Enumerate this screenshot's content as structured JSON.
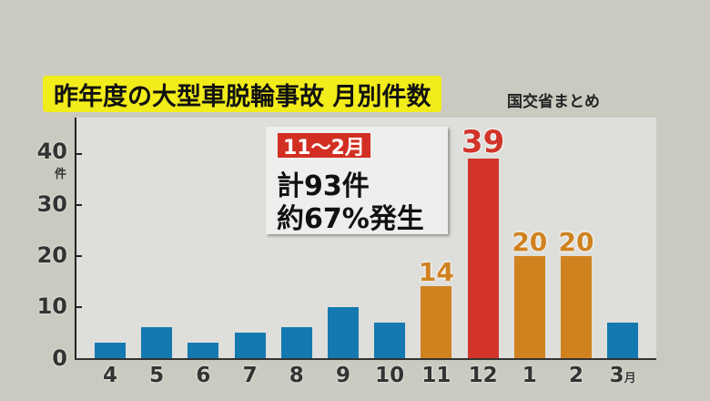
{
  "header": {
    "title": "昨年度の大型車脱輪事故 月別件数",
    "source": "国交省まとめ"
  },
  "callout": {
    "tag": "11〜2月",
    "line1": "計93件",
    "line2": "約67%発生"
  },
  "axis": {
    "y_ticks": [
      "40",
      "30",
      "20",
      "10",
      "0"
    ],
    "y_unit": "件",
    "x_unit": "月"
  },
  "colors": {
    "normal": "#1479b0",
    "highlight": "#d0821f",
    "peak": "#d2342a"
  },
  "chart_data": {
    "type": "bar",
    "title": "昨年度の大型車脱輪事故 月別件数",
    "subtitle": "国交省まとめ",
    "xlabel": "月",
    "ylabel": "件",
    "categories": [
      "4",
      "5",
      "6",
      "7",
      "8",
      "9",
      "10",
      "11",
      "12",
      "1",
      "2",
      "3"
    ],
    "values": [
      3,
      6,
      3,
      5,
      6,
      10,
      7,
      14,
      39,
      20,
      20,
      7
    ],
    "data_labels": {
      "11": "14",
      "12": "39",
      "1": "20",
      "2": "20"
    },
    "ylim": [
      0,
      45
    ],
    "yticks": [
      0,
      10,
      20,
      30,
      40
    ],
    "grid": false,
    "annotation": "11〜2月 計93件 約67%発生"
  }
}
